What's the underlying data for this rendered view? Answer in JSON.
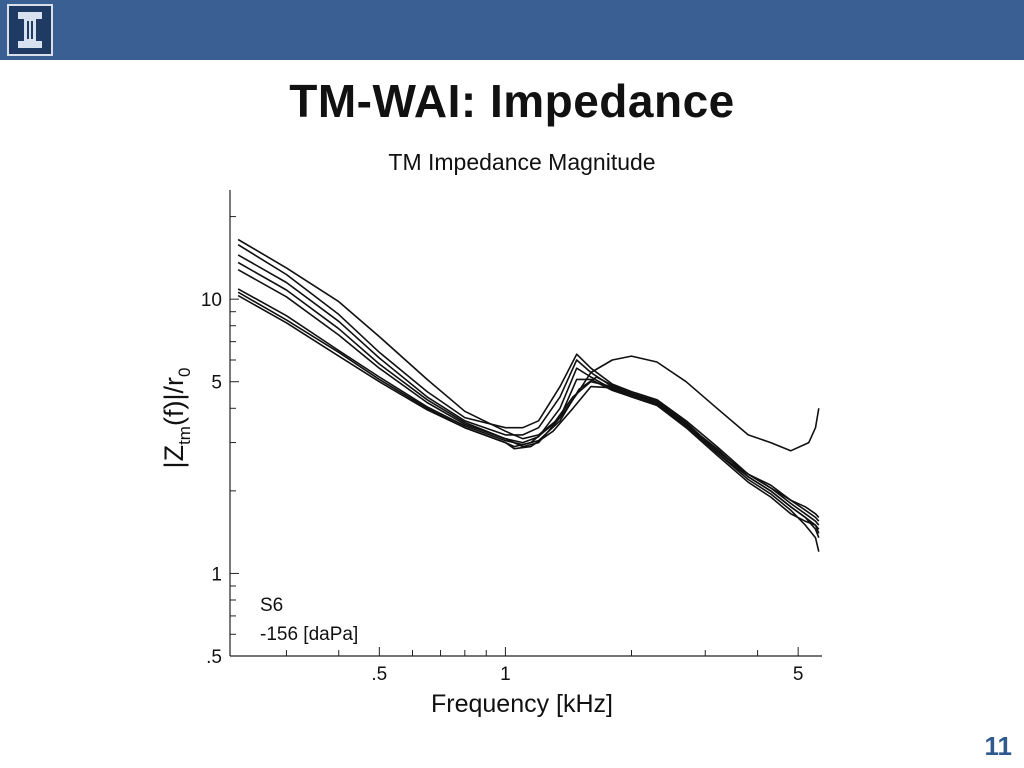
{
  "slide": {
    "title": "TM-WAI: Impedance",
    "page_number": "11"
  },
  "colors": {
    "header_bar": "#3a5f93",
    "logo_bg": "#1f3b64",
    "page_number": "#2f5a8f"
  },
  "logo": {
    "icon": "university-i-logo"
  },
  "chart_data": {
    "type": "line",
    "title": "TM Impedance Magnitude",
    "xlabel": "Frequency [kHz]",
    "ylabel_main": "|Z",
    "ylabel_sub": "tm",
    "ylabel_mid": "(f)|/r",
    "ylabel_sub2": "0",
    "x_scale": "log",
    "y_scale": "log",
    "xlim": [
      0.22,
      5.7
    ],
    "ylim": [
      0.5,
      25
    ],
    "x_tick_labels": [
      {
        "v": 0.5,
        "label": ".5"
      },
      {
        "v": 1,
        "label": "1"
      },
      {
        "v": 5,
        "label": "5"
      }
    ],
    "y_tick_labels": [
      {
        "v": 0.5,
        "label": ".5"
      },
      {
        "v": 1,
        "label": "1"
      },
      {
        "v": 5,
        "label": "5"
      },
      {
        "v": 10,
        "label": "10"
      }
    ],
    "annotations": [
      "S6",
      "-156 [daPa]"
    ],
    "grid": false,
    "series": [
      {
        "x": [
          0.23,
          0.3,
          0.4,
          0.5,
          0.65,
          0.8,
          1.0,
          1.1,
          1.2,
          1.35,
          1.48,
          1.6,
          1.8,
          2.0,
          2.3,
          2.7,
          3.2,
          3.8,
          4.3,
          4.8,
          5.3,
          5.5,
          5.6
        ],
        "y": [
          16.5,
          13.0,
          9.8,
          7.3,
          5.1,
          3.9,
          3.3,
          3.1,
          3.2,
          3.7,
          4.5,
          5.4,
          6.0,
          6.2,
          5.9,
          5.0,
          4.0,
          3.2,
          3.0,
          2.8,
          3.0,
          3.4,
          4.0
        ]
      },
      {
        "x": [
          0.23,
          0.3,
          0.4,
          0.5,
          0.65,
          0.8,
          1.0,
          1.1,
          1.2,
          1.35,
          1.48,
          1.6,
          1.8,
          2.0,
          2.3,
          2.7,
          3.2,
          3.8,
          4.3,
          4.8,
          5.2,
          5.5,
          5.6
        ],
        "y": [
          15.8,
          12.3,
          8.8,
          6.4,
          4.6,
          3.7,
          3.4,
          3.4,
          3.6,
          4.8,
          6.3,
          5.6,
          4.9,
          4.6,
          4.3,
          3.6,
          2.9,
          2.3,
          2.05,
          1.85,
          1.7,
          1.6,
          1.55
        ]
      },
      {
        "x": [
          0.23,
          0.3,
          0.4,
          0.5,
          0.65,
          0.8,
          1.0,
          1.1,
          1.2,
          1.35,
          1.48,
          1.6,
          1.8,
          2.0,
          2.3,
          2.7,
          3.2,
          3.8,
          4.3,
          4.8,
          5.2,
          5.5,
          5.6
        ],
        "y": [
          14.5,
          11.5,
          8.3,
          6.1,
          4.4,
          3.6,
          3.2,
          3.2,
          3.4,
          4.4,
          6.0,
          5.4,
          4.8,
          4.5,
          4.2,
          3.5,
          2.85,
          2.25,
          2.0,
          1.75,
          1.6,
          1.45,
          1.35
        ]
      },
      {
        "x": [
          0.23,
          0.3,
          0.4,
          0.5,
          0.65,
          0.8,
          1.0,
          1.1,
          1.2,
          1.35,
          1.48,
          1.6,
          1.8,
          2.0,
          2.3,
          2.7,
          3.2,
          3.8,
          4.3,
          4.8,
          5.2,
          5.5,
          5.6
        ],
        "y": [
          13.6,
          10.8,
          7.8,
          5.8,
          4.3,
          3.55,
          3.1,
          3.0,
          3.15,
          4.0,
          5.6,
          5.2,
          4.7,
          4.4,
          4.1,
          3.45,
          2.75,
          2.2,
          1.95,
          1.7,
          1.5,
          1.35,
          1.2
        ]
      },
      {
        "x": [
          0.23,
          0.3,
          0.4,
          0.5,
          0.65,
          0.8,
          1.0,
          1.1,
          1.2,
          1.35,
          1.48,
          1.6,
          1.8,
          2.0,
          2.3,
          2.7,
          3.2,
          3.8,
          4.3,
          4.8,
          5.2,
          5.5,
          5.6
        ],
        "y": [
          12.8,
          10.2,
          7.4,
          5.6,
          4.2,
          3.5,
          3.1,
          2.9,
          3.0,
          3.7,
          5.1,
          5.1,
          4.65,
          4.4,
          4.1,
          3.4,
          2.7,
          2.15,
          1.9,
          1.65,
          1.55,
          1.5,
          1.45
        ]
      },
      {
        "x": [
          0.23,
          0.3,
          0.4,
          0.5,
          0.65,
          0.8,
          1.0,
          1.05,
          1.15,
          1.3,
          1.45,
          1.6,
          1.8,
          2.0,
          2.3,
          2.7,
          3.2,
          3.8,
          4.3,
          4.8,
          5.2,
          5.5,
          5.6
        ],
        "y": [
          10.6,
          8.4,
          6.4,
          5.1,
          4.0,
          3.4,
          3.0,
          2.9,
          3.0,
          3.5,
          4.4,
          5.0,
          4.8,
          4.5,
          4.2,
          3.5,
          2.8,
          2.3,
          2.05,
          1.8,
          1.65,
          1.55,
          1.5
        ]
      },
      {
        "x": [
          0.23,
          0.3,
          0.4,
          0.5,
          0.65,
          0.8,
          1.0,
          1.05,
          1.15,
          1.3,
          1.45,
          1.6,
          1.8,
          2.0,
          2.3,
          2.7,
          3.2,
          3.8,
          4.3,
          4.8,
          5.2,
          5.5,
          5.6
        ],
        "y": [
          10.3,
          8.2,
          6.2,
          5.0,
          3.95,
          3.4,
          3.0,
          2.85,
          2.9,
          3.3,
          4.0,
          4.8,
          4.75,
          4.45,
          4.15,
          3.45,
          2.75,
          2.25,
          2.0,
          1.75,
          1.6,
          1.5,
          1.4
        ]
      },
      {
        "x": [
          0.23,
          0.3,
          0.4,
          0.5,
          0.65,
          0.8,
          1.0,
          1.1,
          1.2,
          1.35,
          1.5,
          1.65,
          1.8,
          2.0,
          2.3,
          2.7,
          3.2,
          3.8,
          4.3,
          4.8,
          5.2,
          5.5,
          5.6
        ],
        "y": [
          10.9,
          8.7,
          6.5,
          5.2,
          4.05,
          3.45,
          3.05,
          2.95,
          3.05,
          3.6,
          4.7,
          5.2,
          4.85,
          4.55,
          4.25,
          3.55,
          2.8,
          2.3,
          2.1,
          1.85,
          1.75,
          1.65,
          1.6
        ]
      }
    ]
  }
}
